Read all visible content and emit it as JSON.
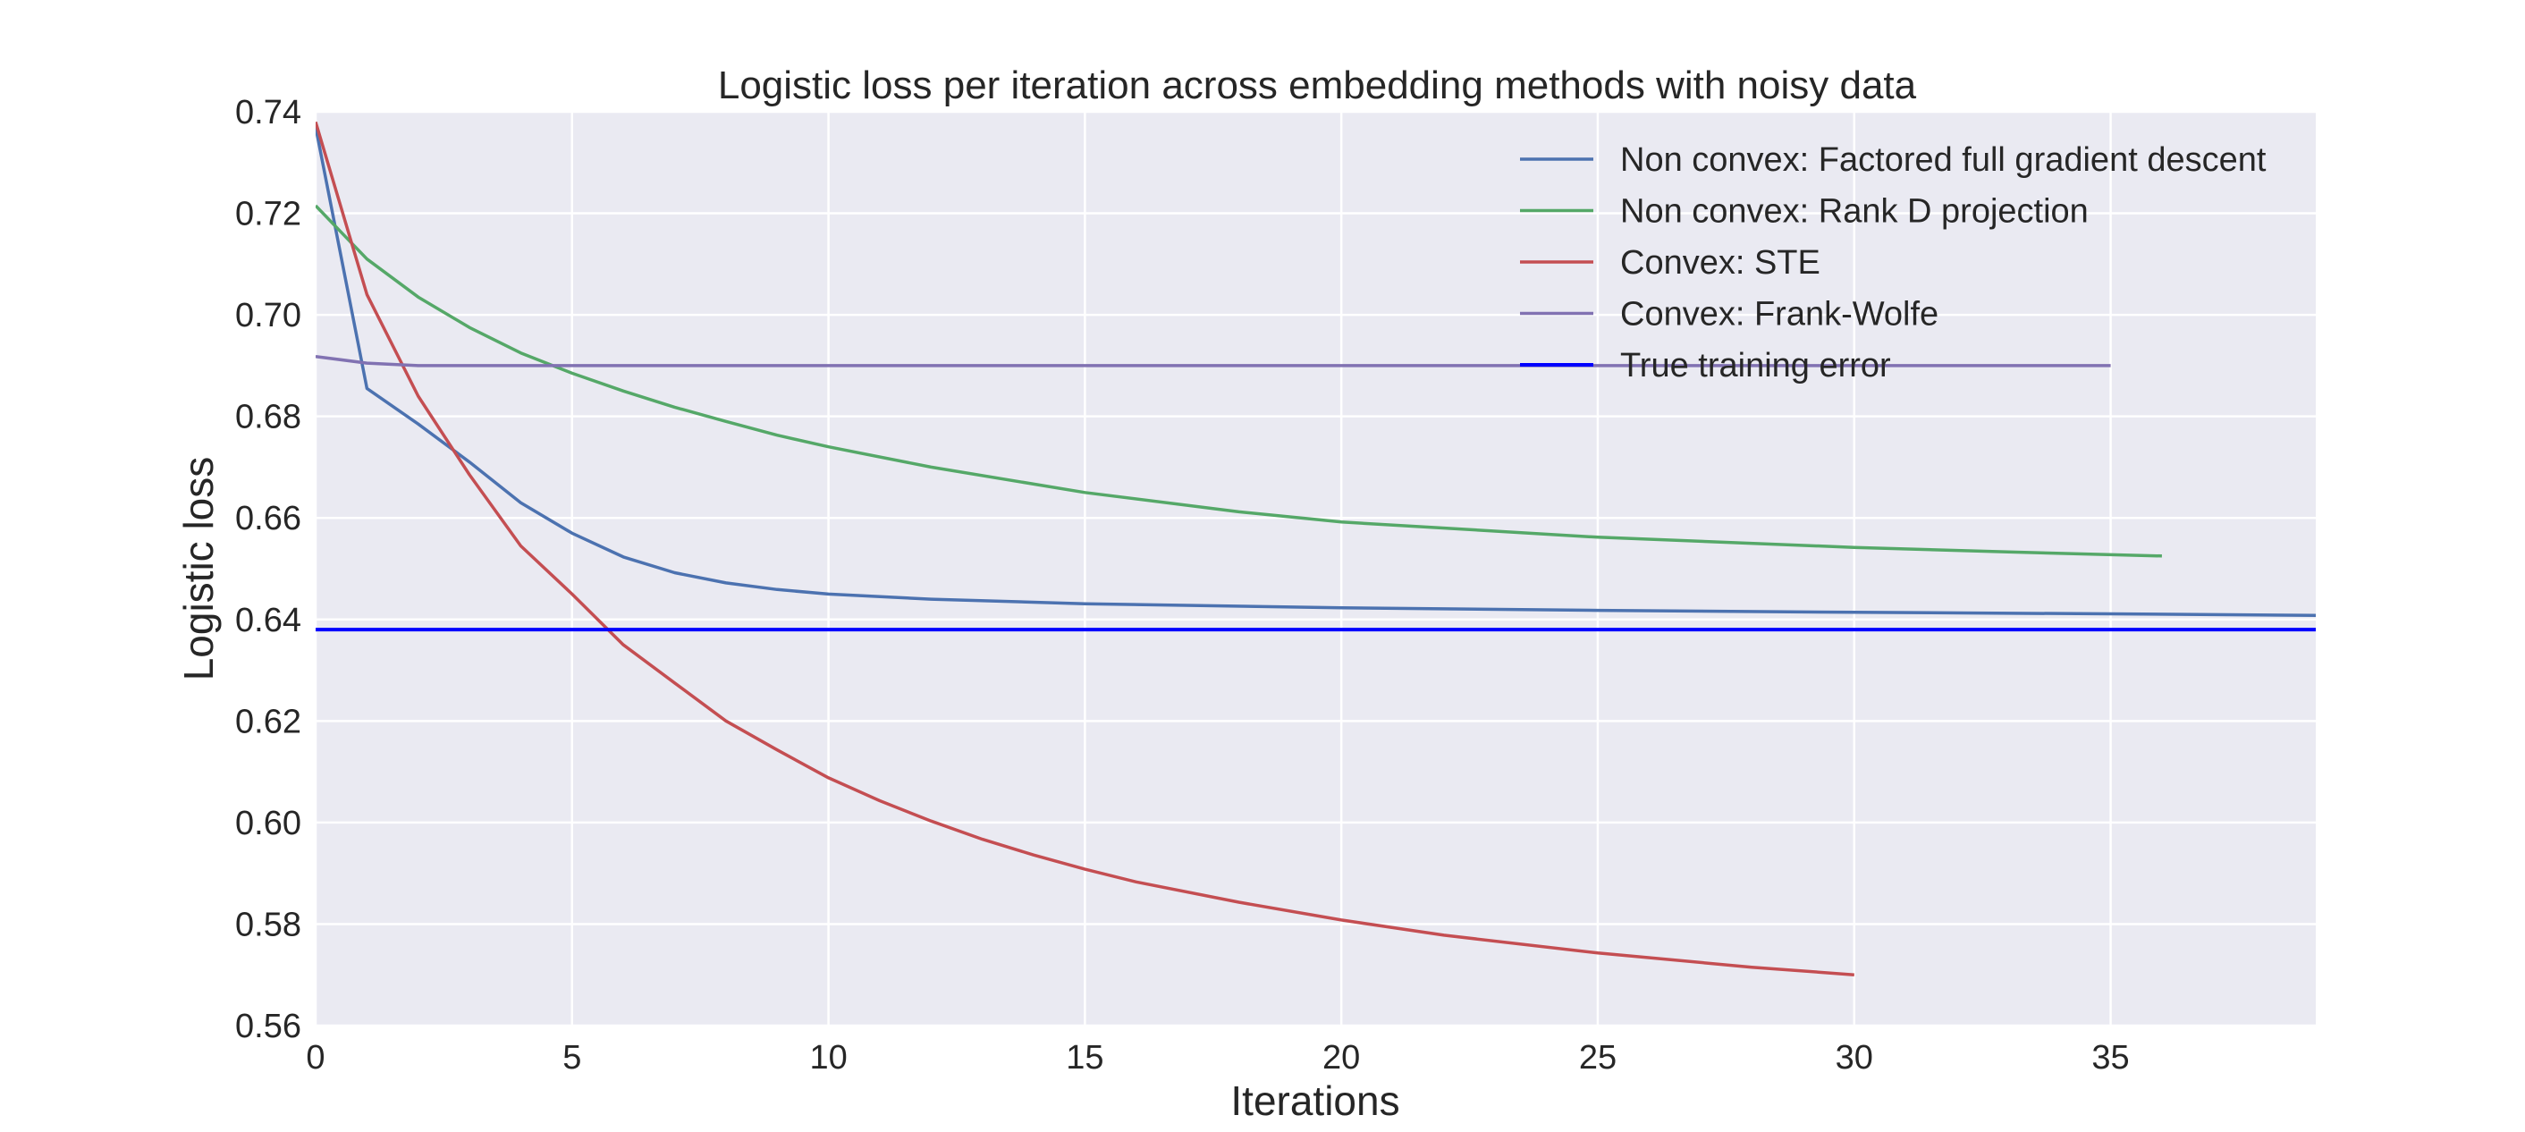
{
  "chart_data": {
    "type": "line",
    "title": "Logistic loss per iteration across embedding methods with noisy data",
    "xlabel": "Iterations",
    "ylabel": "Logistic loss",
    "xlim": [
      0,
      39
    ],
    "ylim": [
      0.56,
      0.74
    ],
    "xticks": [
      0,
      5,
      10,
      15,
      20,
      25,
      30,
      35
    ],
    "yticks": [
      0.56,
      0.58,
      0.6,
      0.62,
      0.64,
      0.66,
      0.68,
      0.7,
      0.72,
      0.74
    ],
    "xtick_labels": [
      "0",
      "5",
      "10",
      "15",
      "20",
      "25",
      "30",
      "35"
    ],
    "ytick_labels": [
      "0.56",
      "0.58",
      "0.60",
      "0.62",
      "0.64",
      "0.66",
      "0.68",
      "0.70",
      "0.72",
      "0.74"
    ],
    "grid": true,
    "background": "#EAEAF2",
    "legend_position": "top-right",
    "series": [
      {
        "name": "Non convex: Factored full gradient descent",
        "color": "#4C72B0",
        "x": [
          0,
          1,
          2,
          3,
          4,
          5,
          6,
          7,
          8,
          9,
          10,
          12,
          15,
          20,
          25,
          30,
          35,
          39
        ],
        "y": [
          0.737,
          0.6855,
          0.6785,
          0.671,
          0.663,
          0.657,
          0.6523,
          0.6492,
          0.6472,
          0.6459,
          0.645,
          0.644,
          0.6431,
          0.6423,
          0.6418,
          0.6414,
          0.6411,
          0.6408
        ]
      },
      {
        "name": "Non convex: Rank D projection",
        "color": "#55A868",
        "x": [
          0,
          1,
          2,
          3,
          4,
          5,
          6,
          7,
          8,
          9,
          10,
          12,
          15,
          18,
          20,
          25,
          30,
          33,
          36
        ],
        "y": [
          0.7215,
          0.711,
          0.7035,
          0.6975,
          0.6925,
          0.6885,
          0.685,
          0.6818,
          0.679,
          0.6763,
          0.674,
          0.67,
          0.665,
          0.6612,
          0.6592,
          0.6562,
          0.6542,
          0.6533,
          0.6525
        ]
      },
      {
        "name": "Convex: STE",
        "color": "#C44E52",
        "x": [
          0,
          1,
          2,
          3,
          4,
          5,
          6,
          7,
          8,
          9,
          10,
          11,
          12,
          13,
          14,
          15,
          16,
          18,
          20,
          22,
          25,
          28,
          30
        ],
        "y": [
          0.738,
          0.704,
          0.684,
          0.6685,
          0.6545,
          0.645,
          0.635,
          0.6275,
          0.62,
          0.6143,
          0.6088,
          0.6043,
          0.6003,
          0.5967,
          0.5936,
          0.5908,
          0.5883,
          0.5843,
          0.5808,
          0.5778,
          0.5743,
          0.5715,
          0.57
        ]
      },
      {
        "name": "Convex: Frank-Wolfe",
        "color": "#8172B2",
        "x": [
          0,
          1,
          2,
          5,
          10,
          20,
          30,
          35
        ],
        "y": [
          0.6918,
          0.6905,
          0.69,
          0.69,
          0.69,
          0.69,
          0.69,
          0.69
        ]
      },
      {
        "name": "True training error",
        "color": "#0000FF",
        "x": [
          0,
          39
        ],
        "y": [
          0.638,
          0.638
        ]
      }
    ]
  }
}
